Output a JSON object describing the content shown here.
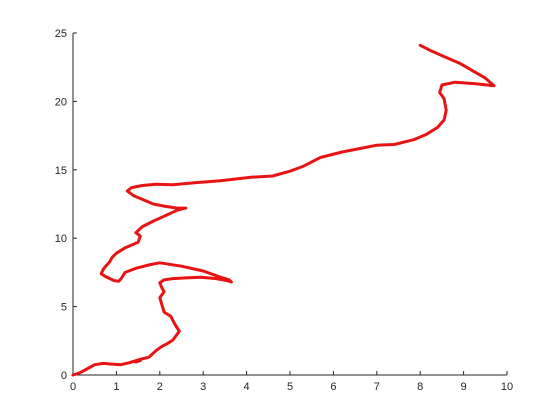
{
  "chart_data": {
    "type": "line",
    "title": "",
    "xlabel": "",
    "ylabel": "",
    "xlim": [
      0,
      10
    ],
    "ylim": [
      0,
      25
    ],
    "grid": false,
    "legend": "none",
    "x_ticks": [
      "0",
      "1",
      "2",
      "3",
      "4",
      "5",
      "6",
      "7",
      "8",
      "9",
      "10"
    ],
    "y_ticks": [
      "0",
      "5",
      "10",
      "15",
      "20",
      "25"
    ],
    "series": [
      {
        "color": "#e81414",
        "x": [
          0.0,
          0.15,
          0.3,
          0.5,
          0.7,
          0.9,
          1.1,
          1.3,
          1.4,
          1.45,
          1.55,
          1.4,
          1.55,
          1.75,
          1.9,
          2.05,
          2.15,
          2.3,
          2.45,
          2.35,
          2.25,
          2.1,
          2.05,
          2.0,
          2.1,
          2.05,
          2.0,
          2.1,
          2.3,
          2.6,
          2.95,
          3.3,
          3.55,
          3.65,
          3.6,
          3.4,
          3.0,
          2.5,
          2.0,
          1.75,
          1.45,
          1.2,
          1.1,
          1.05,
          0.95,
          0.85,
          0.75,
          0.65,
          0.7,
          0.85,
          0.9,
          1.0,
          1.2,
          1.5,
          1.55,
          1.45,
          1.6,
          1.85,
          2.1,
          2.4,
          2.6,
          2.4,
          2.1,
          1.85,
          1.7,
          1.4,
          1.25,
          1.35,
          1.6,
          1.9,
          2.3,
          2.8,
          3.4,
          4.1,
          4.6,
          5.0,
          5.3,
          5.7,
          6.2,
          6.6,
          7.0,
          7.4,
          7.85,
          8.15,
          8.4,
          8.55,
          8.6,
          8.55,
          8.45,
          8.5,
          8.8,
          9.25,
          9.7,
          9.5,
          9.2,
          8.9,
          8.5,
          8.25,
          8.0
        ],
        "y": [
          0.0,
          0.15,
          0.4,
          0.75,
          0.85,
          0.8,
          0.75,
          0.9,
          1.0,
          0.95,
          1.05,
          1.0,
          1.15,
          1.3,
          1.75,
          2.1,
          2.25,
          2.55,
          3.2,
          3.7,
          4.3,
          4.6,
          5.1,
          5.65,
          6.1,
          6.35,
          6.75,
          6.95,
          7.05,
          7.1,
          7.15,
          7.05,
          6.9,
          6.8,
          6.95,
          7.15,
          7.6,
          7.95,
          8.2,
          8.05,
          7.8,
          7.5,
          7.0,
          6.85,
          6.9,
          7.05,
          7.2,
          7.4,
          7.75,
          8.3,
          8.6,
          8.9,
          9.3,
          9.7,
          10.15,
          10.4,
          10.85,
          11.25,
          11.6,
          12.05,
          12.2,
          12.2,
          12.35,
          12.5,
          12.7,
          13.1,
          13.45,
          13.7,
          13.85,
          13.95,
          13.9,
          14.05,
          14.2,
          14.45,
          14.55,
          14.9,
          15.25,
          15.9,
          16.3,
          16.55,
          16.8,
          16.85,
          17.2,
          17.6,
          18.1,
          18.65,
          19.35,
          20.2,
          20.65,
          21.2,
          21.4,
          21.3,
          21.15,
          21.7,
          22.25,
          22.8,
          23.35,
          23.7,
          24.1
        ]
      }
    ]
  }
}
